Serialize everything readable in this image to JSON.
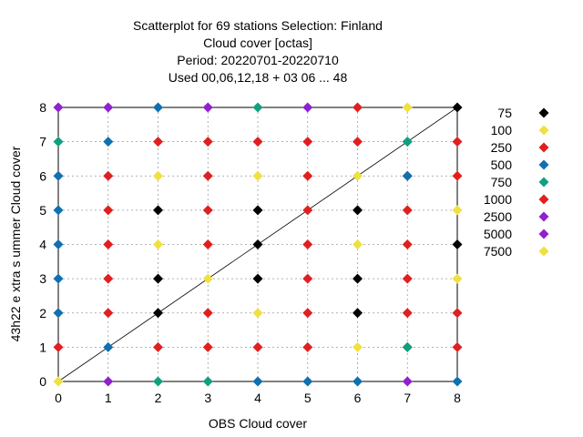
{
  "chart_data": {
    "type": "scatter",
    "title": [
      "Scatterplot for   69 stations Selection: Finland",
      "Cloud cover [octas]",
      "Period: 20220701-20220710",
      "Used  00,06,12,18  + 03 06 ... 48"
    ],
    "xlabel": "OBS Cloud cover",
    "ylabel": "43h22 e xtra s ummer Cloud cover",
    "xlim": [
      0,
      8
    ],
    "ylim": [
      0,
      8
    ],
    "xticks": [
      "0",
      "1",
      "2",
      "3",
      "4",
      "5",
      "6",
      "7",
      "8"
    ],
    "yticks": [
      "0",
      "1",
      "2",
      "3",
      "4",
      "5",
      "6",
      "7",
      "8"
    ],
    "grid": true,
    "diagonal": true,
    "legend_position": "right",
    "series": [
      {
        "name": "75",
        "color": "#000000",
        "points": [
          [
            2,
            2
          ],
          [
            2,
            3
          ],
          [
            2,
            5
          ],
          [
            4,
            3
          ],
          [
            4,
            4
          ],
          [
            4,
            5
          ],
          [
            6,
            2
          ],
          [
            6,
            3
          ],
          [
            6,
            5
          ],
          [
            8,
            4
          ],
          [
            8,
            8
          ]
        ]
      },
      {
        "name": "100",
        "color": "#f0e040",
        "points": [
          [
            0,
            0
          ],
          [
            2,
            4
          ],
          [
            2,
            6
          ],
          [
            3,
            3
          ],
          [
            4,
            2
          ],
          [
            4,
            6
          ],
          [
            6,
            1
          ],
          [
            6,
            4
          ],
          [
            6,
            6
          ],
          [
            7,
            8
          ],
          [
            8,
            3
          ],
          [
            8,
            5
          ]
        ]
      },
      {
        "name": "250",
        "color": "#e02020",
        "points": [
          [
            0,
            1
          ],
          [
            1,
            2
          ],
          [
            1,
            3
          ],
          [
            1,
            4
          ],
          [
            1,
            5
          ],
          [
            1,
            6
          ],
          [
            2,
            1
          ],
          [
            2,
            7
          ],
          [
            3,
            1
          ],
          [
            3,
            2
          ],
          [
            3,
            4
          ],
          [
            3,
            5
          ],
          [
            3,
            6
          ],
          [
            3,
            7
          ],
          [
            4,
            1
          ],
          [
            4,
            7
          ],
          [
            5,
            1
          ],
          [
            5,
            2
          ],
          [
            5,
            3
          ],
          [
            5,
            4
          ],
          [
            5,
            5
          ],
          [
            5,
            6
          ],
          [
            5,
            7
          ],
          [
            6,
            7
          ],
          [
            6,
            8
          ],
          [
            7,
            1
          ],
          [
            7,
            2
          ],
          [
            7,
            3
          ],
          [
            7,
            4
          ],
          [
            7,
            5
          ],
          [
            7,
            6
          ],
          [
            8,
            1
          ],
          [
            8,
            2
          ],
          [
            8,
            6
          ],
          [
            8,
            7
          ]
        ]
      },
      {
        "name": "500",
        "color": "#1070b0",
        "points": [
          [
            0,
            2
          ],
          [
            0,
            3
          ],
          [
            0,
            4
          ],
          [
            0,
            5
          ],
          [
            0,
            6
          ],
          [
            1,
            1
          ],
          [
            1,
            7
          ],
          [
            2,
            8
          ],
          [
            4,
            0
          ],
          [
            5,
            0
          ],
          [
            6,
            0
          ],
          [
            7,
            6
          ],
          [
            7,
            7
          ],
          [
            8,
            0
          ]
        ]
      },
      {
        "name": "750",
        "color": "#10a080",
        "points": [
          [
            0,
            7
          ],
          [
            2,
            0
          ],
          [
            3,
            0
          ],
          [
            4,
            8
          ],
          [
            7,
            1
          ],
          [
            7,
            7
          ]
        ]
      },
      {
        "name": "1000",
        "color": "#e02020",
        "points": []
      },
      {
        "name": "2500",
        "color": "#9020d0",
        "points": [
          [
            0,
            8
          ],
          [
            1,
            0
          ],
          [
            1,
            8
          ],
          [
            3,
            8
          ],
          [
            5,
            8
          ],
          [
            7,
            0
          ]
        ]
      },
      {
        "name": "5000",
        "color": "#9020d0",
        "points": []
      },
      {
        "name": "7500",
        "color": "#f0e040",
        "points": []
      }
    ]
  }
}
